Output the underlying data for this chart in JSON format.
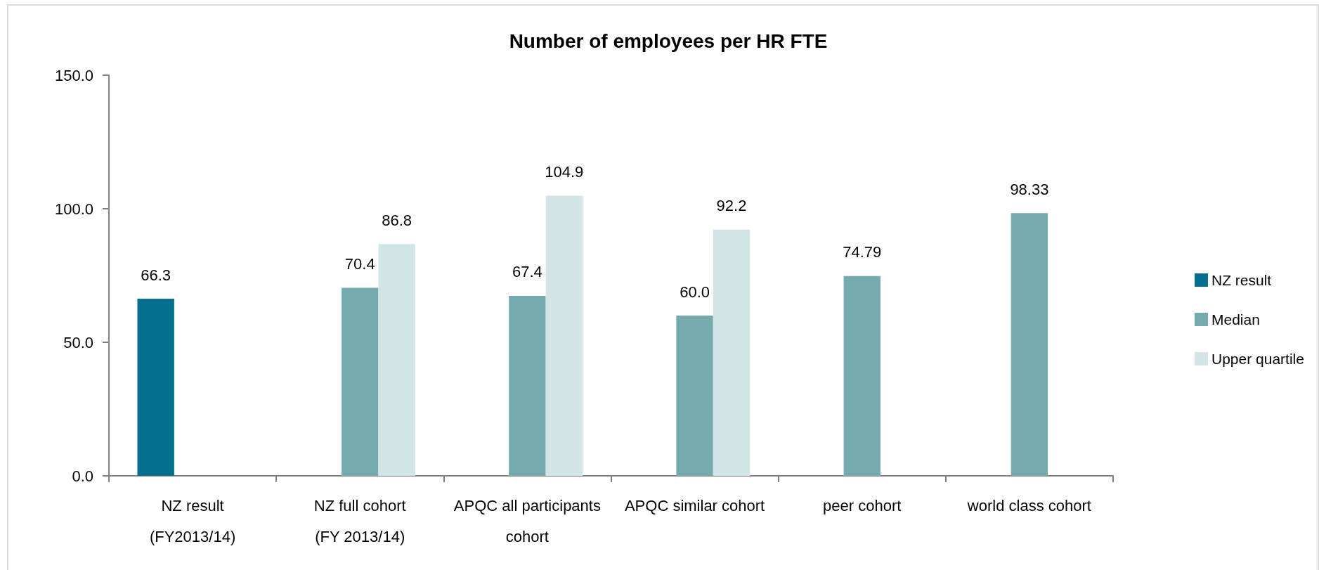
{
  "chart_data": {
    "type": "bar",
    "title": "Number of employees per HR FTE",
    "categories": [
      "NZ result (FY2013/14)",
      "NZ full cohort (FY 2013/14)",
      "APQC all participants cohort",
      "APQC similar cohort",
      "peer cohort",
      "world class cohort"
    ],
    "series": [
      {
        "name": "NZ result",
        "color": "#04708d",
        "values": [
          66.3,
          null,
          null,
          null,
          null,
          null
        ],
        "value_labels": [
          "66.3",
          null,
          null,
          null,
          null,
          null
        ]
      },
      {
        "name": "Median",
        "color": "#75aaaf",
        "values": [
          null,
          70.4,
          67.4,
          60.0,
          74.79,
          98.33
        ],
        "value_labels": [
          null,
          "70.4",
          "67.4",
          "60.0",
          "74.79",
          "98.33"
        ]
      },
      {
        "name": "Upper quartile",
        "color": "#d3e4e7",
        "values": [
          null,
          86.8,
          104.9,
          92.2,
          null,
          null
        ],
        "value_labels": [
          null,
          "86.8",
          "104.9",
          "92.2",
          null,
          null
        ]
      }
    ],
    "ylim": [
      0,
      150
    ],
    "yticks": [
      {
        "value": 0,
        "label": "0.0"
      },
      {
        "value": 50,
        "label": "50.0"
      },
      {
        "value": 100,
        "label": "100.0"
      },
      {
        "value": 150,
        "label": "150.0"
      }
    ],
    "legend": "right"
  }
}
